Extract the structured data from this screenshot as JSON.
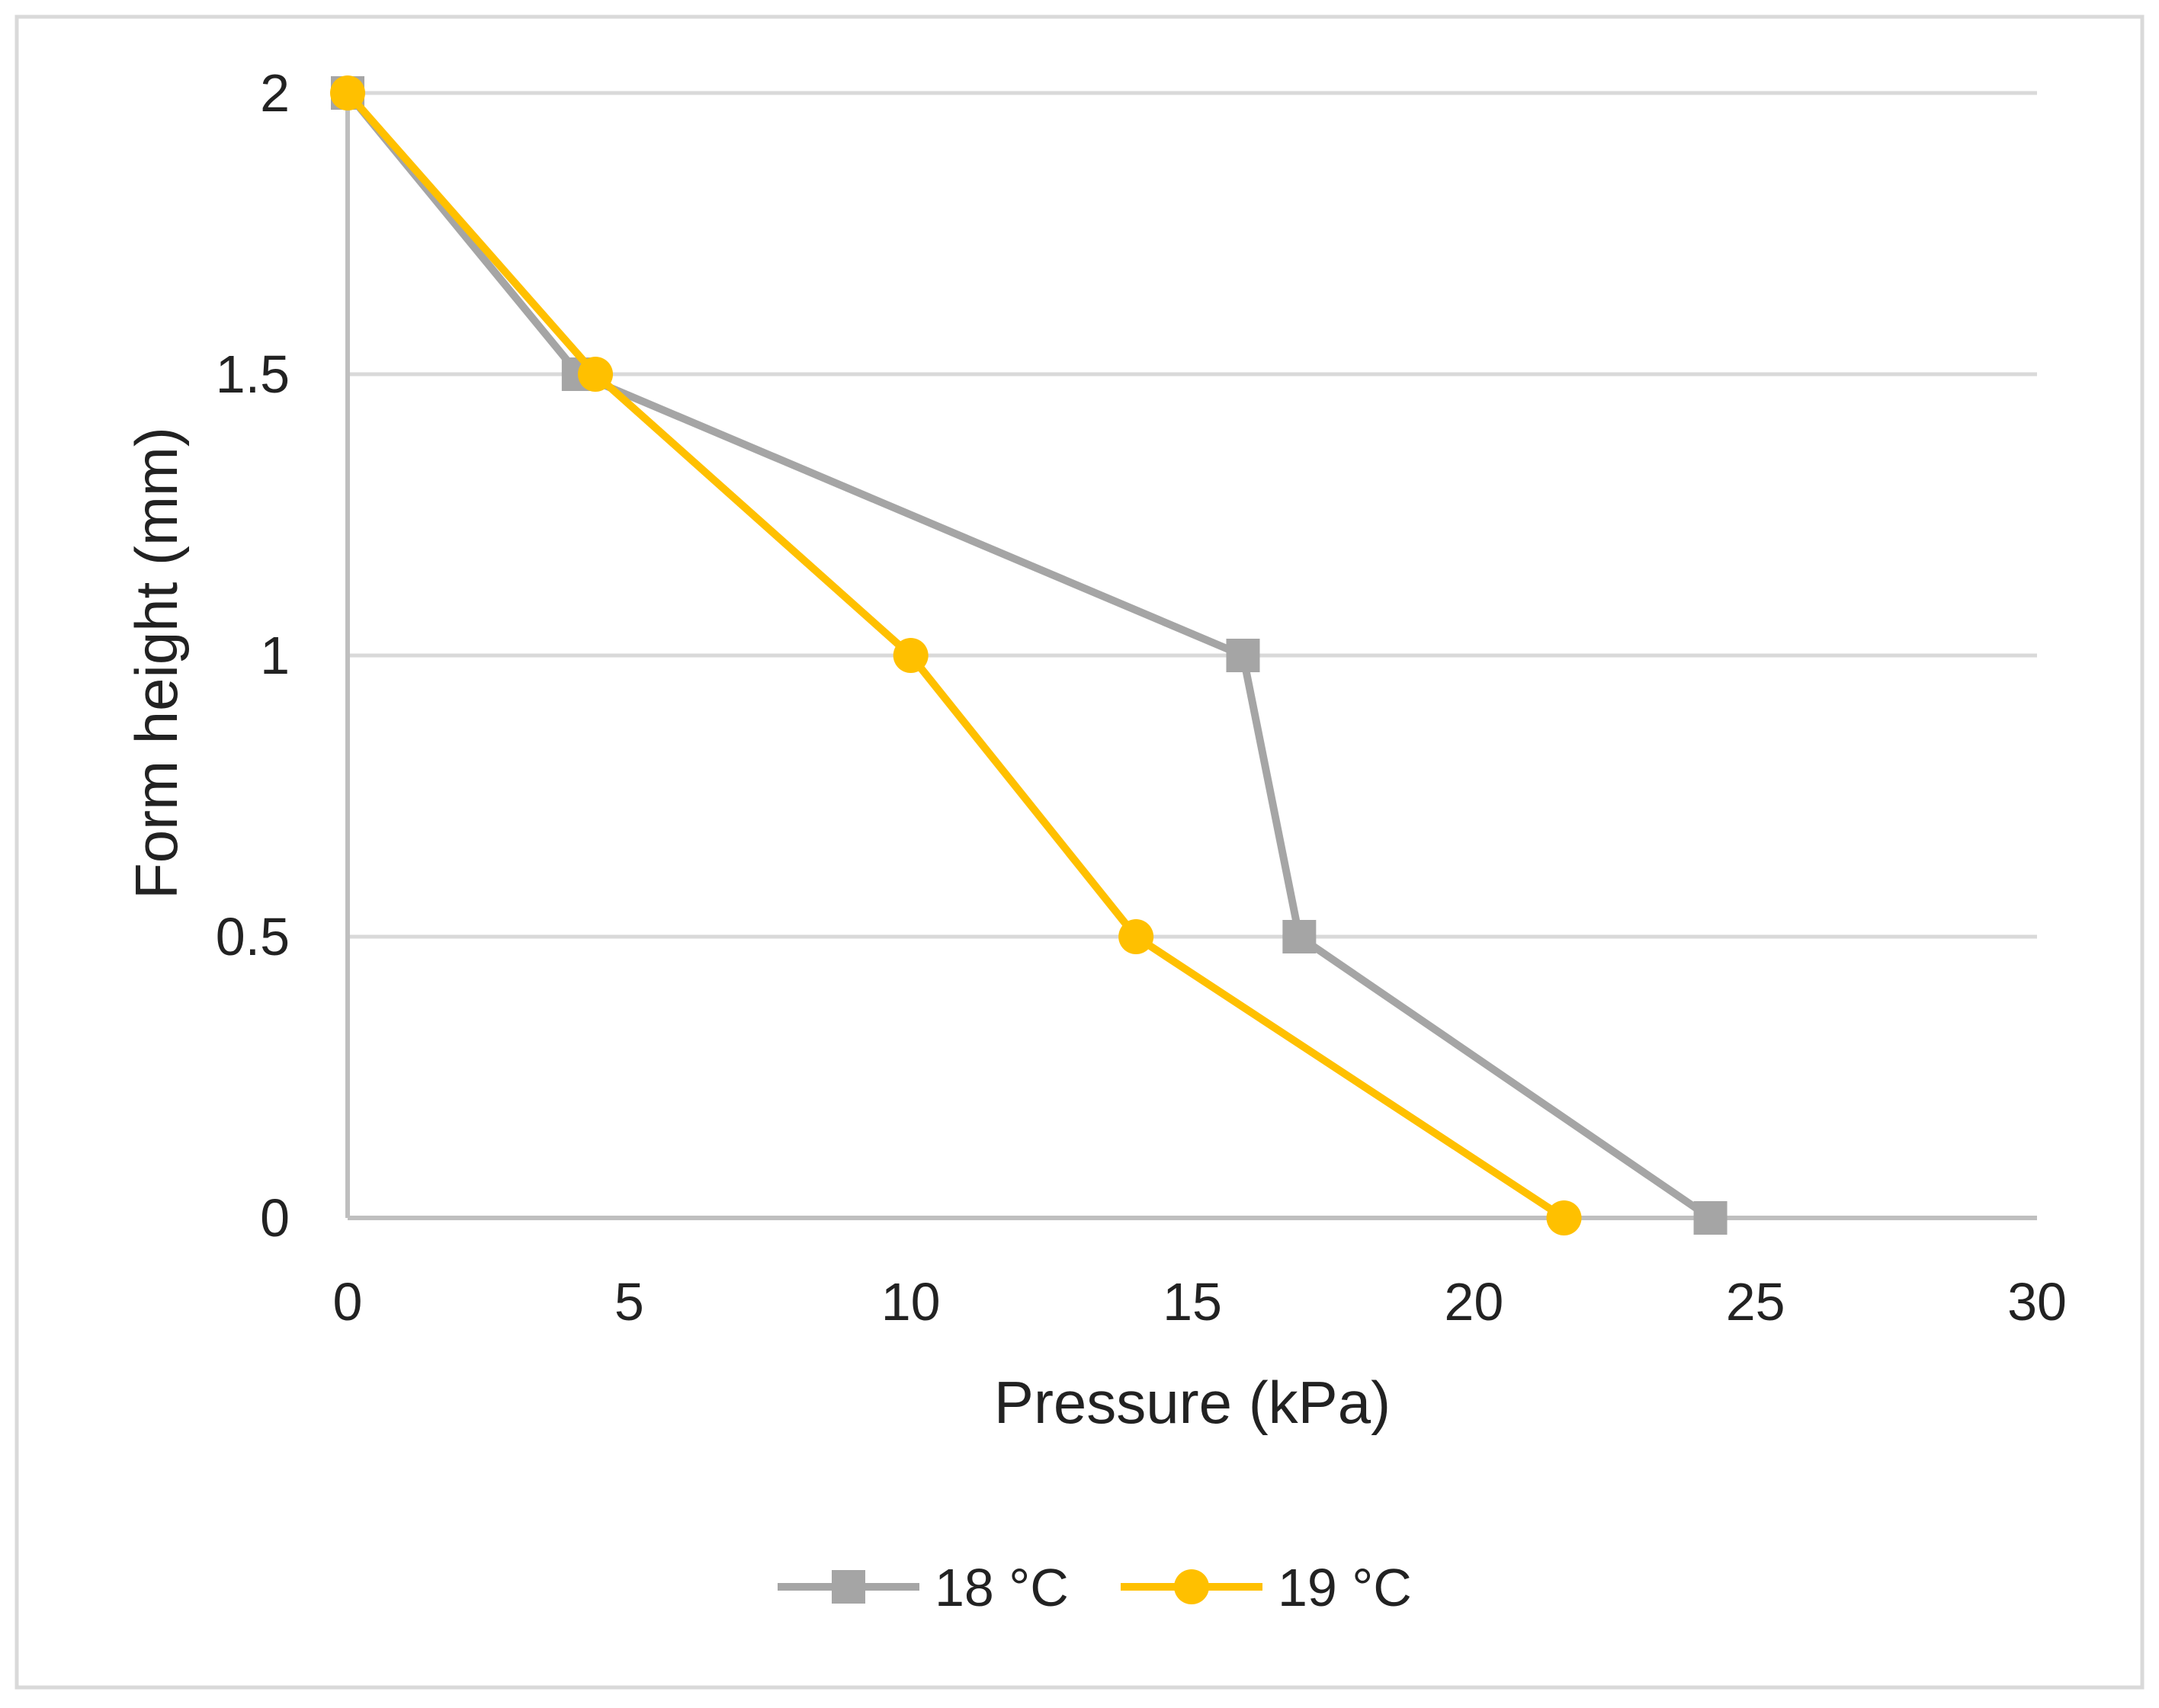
{
  "chart_data": {
    "type": "line",
    "title": "",
    "xlabel": "Pressure (kPa)",
    "ylabel": "Form height (mm)",
    "xlim": [
      0,
      30
    ],
    "ylim": [
      0,
      2
    ],
    "xticks": [
      0,
      5,
      10,
      15,
      20,
      25,
      30
    ],
    "yticks": [
      0,
      0.5,
      1,
      1.5,
      2
    ],
    "xtick_labels": [
      "0",
      "5",
      "10",
      "15",
      "20",
      "25",
      "30"
    ],
    "ytick_labels": [
      "0",
      "0.5",
      "1",
      "1.5",
      "2"
    ],
    "grid": "horizontal",
    "legend_position": "bottom-center",
    "series": [
      {
        "name": "18 °C",
        "color": "#A5A5A5",
        "marker": "square",
        "x": [
          0,
          4.1,
          15.9,
          16.9,
          24.2
        ],
        "y": [
          2,
          1.5,
          1,
          0.5,
          0
        ]
      },
      {
        "name": "19 °C",
        "color": "#FFC000",
        "marker": "circle",
        "x": [
          0,
          4.4,
          10,
          14,
          21.6
        ],
        "y": [
          2,
          1.5,
          1,
          0.5,
          0
        ]
      }
    ]
  }
}
